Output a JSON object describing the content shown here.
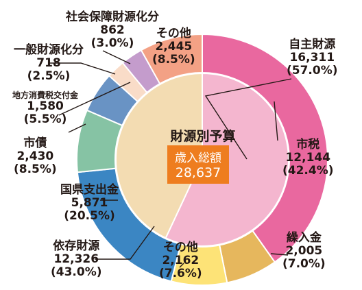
{
  "chart_data": {
    "type": "pie",
    "title": "財源別予算",
    "total_label": "歳入総額",
    "total_value": "28,637",
    "outer_ring": [
      {
        "name": "自主財源",
        "value": 16311,
        "value_label": "16,311",
        "pct_label": "(57.0%)",
        "color": "#e9689f"
      },
      {
        "name": "依存財源",
        "value": 12326,
        "value_label": "12,326",
        "pct_label": "(43.0%)",
        "color": "#f2d9b0"
      }
    ],
    "inner_ring": [
      {
        "name": "市税",
        "value": 12144,
        "value_label": "12,144",
        "pct_label": "(42.4%)",
        "color": "#e9689f"
      },
      {
        "name": "繰入金",
        "value": 2005,
        "value_label": "2,005",
        "pct_label": "(7.0%)",
        "color": "#e6b75d"
      },
      {
        "name": "その他",
        "value": 2162,
        "value_label": "2,162",
        "pct_label": "(7.6%)",
        "color": "#fde377"
      },
      {
        "name": "国県支出金",
        "value": 5871,
        "value_label": "5,871",
        "pct_label": "(20.5%)",
        "color": "#3b86c3"
      },
      {
        "name": "市債",
        "value": 2430,
        "value_label": "2,430",
        "pct_label": "(8.5%)",
        "color": "#86c3a4"
      },
      {
        "name": "地方消費税交付金",
        "value": 1580,
        "value_label": "1,580",
        "pct_label": "(5.5%)",
        "color": "#6993c4"
      },
      {
        "name": "一般財源化分",
        "value": 718,
        "value_label": "718",
        "pct_label": "(2.5%)",
        "color": "#f9dcc8"
      },
      {
        "name": "社会保障財源化分",
        "value": 862,
        "value_label": "862",
        "pct_label": "(3.0%)",
        "color": "#c49ccc"
      },
      {
        "name": "その他",
        "value": 2445,
        "value_label": "2,445",
        "pct_label": "(8.5%)",
        "color": "#f3a185"
      }
    ],
    "center_ring_colors": [
      "#f4b6cf",
      "#f3dcb2"
    ]
  }
}
